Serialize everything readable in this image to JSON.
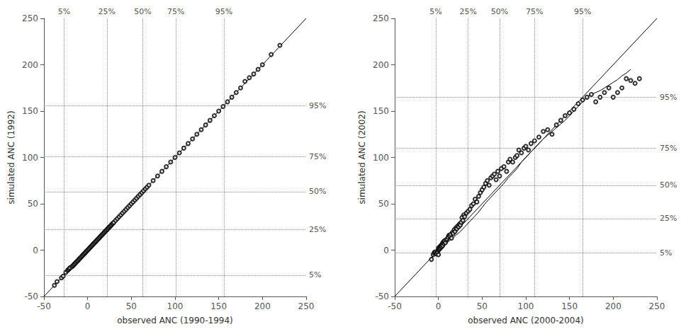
{
  "chart_data": [
    {
      "type": "scatter",
      "xlabel": "observed ANC (1990-1994)",
      "ylabel": "simulated ANC (1992)",
      "xlim": [
        -50,
        250
      ],
      "ylim": [
        -50,
        250
      ],
      "xticks": [
        -50,
        0,
        50,
        100,
        150,
        200,
        250
      ],
      "yticks": [
        -50,
        0,
        50,
        100,
        150,
        200,
        250
      ],
      "grid": false,
      "percentiles": {
        "x": [
          -27,
          22,
          63,
          101,
          156
        ],
        "y": [
          -27,
          22,
          63,
          101,
          156
        ],
        "labels": [
          "5%",
          "25%",
          "50%",
          "75%",
          "95%"
        ],
        "color": "#888888"
      },
      "series": [
        {
          "type": "line",
          "color": "#000000",
          "line_style": "solid",
          "x": [
            -50,
            250
          ],
          "values": [
            -50,
            250
          ]
        },
        {
          "type": "scatter",
          "color": "#000000",
          "marker": "circle-open",
          "x": [
            -38,
            -35,
            -30,
            -28,
            -25,
            -23,
            -22,
            -21,
            -20,
            -18,
            -17,
            -16,
            -15,
            -14,
            -13,
            -12,
            -11,
            -10,
            -9,
            -8,
            -7,
            -6,
            -5,
            -4,
            -3,
            -2,
            -1,
            0,
            1,
            2,
            3,
            4,
            5,
            6,
            7,
            8,
            9,
            10,
            11,
            12,
            13,
            14,
            15,
            16,
            17,
            18,
            19,
            20,
            21,
            22,
            23,
            24,
            25,
            26,
            27,
            28,
            29,
            30,
            32,
            34,
            36,
            38,
            40,
            42,
            44,
            46,
            48,
            50,
            52,
            54,
            56,
            58,
            60,
            62,
            64,
            66,
            68,
            70,
            75,
            80,
            85,
            90,
            95,
            100,
            105,
            110,
            115,
            120,
            125,
            130,
            135,
            140,
            145,
            150,
            155,
            160,
            165,
            170,
            175,
            180,
            185,
            190,
            195,
            200,
            210,
            220
          ],
          "values": [
            -38,
            -34,
            -30,
            -28,
            -24,
            -22,
            -21,
            -20,
            -19,
            -18,
            -17,
            -16,
            -15,
            -14,
            -13,
            -12,
            -11,
            -10,
            -9,
            -8,
            -7,
            -6,
            -5,
            -4,
            -3,
            -2,
            -1,
            0,
            1,
            2,
            3,
            4,
            5,
            6,
            7,
            8,
            9,
            10,
            11,
            12,
            13,
            14,
            15,
            16,
            17,
            18,
            19,
            20,
            21,
            22,
            23,
            24,
            25,
            26,
            27,
            28,
            29,
            30,
            32,
            34,
            36,
            38,
            40,
            42,
            44,
            46,
            48,
            50,
            52,
            54,
            56,
            58,
            60,
            62,
            64,
            66,
            68,
            70,
            75,
            80,
            85,
            90,
            95,
            100,
            105,
            110,
            115,
            120,
            125,
            130,
            135,
            140,
            145,
            150,
            155,
            160,
            165,
            170,
            175,
            182,
            186,
            190,
            195,
            200,
            211,
            221
          ]
        }
      ]
    },
    {
      "type": "scatter",
      "xlabel": "observed ANC (2000-2004)",
      "ylabel": "simulated ANC (2002)",
      "xlim": [
        -50,
        250
      ],
      "ylim": [
        -50,
        250
      ],
      "xticks": [
        -50,
        0,
        50,
        100,
        150,
        200,
        250
      ],
      "yticks": [
        -50,
        0,
        50,
        100,
        150,
        200,
        250
      ],
      "grid": false,
      "percentiles": {
        "x": [
          -3,
          34,
          70,
          110,
          165
        ],
        "y": [
          -3,
          34,
          70,
          110,
          165
        ],
        "labels": [
          "5%",
          "25%",
          "50%",
          "75%",
          "95%"
        ],
        "color": "#888888"
      },
      "series": [
        {
          "type": "line",
          "color": "#000000",
          "line_style": "solid",
          "x": [
            -50,
            250
          ],
          "values": [
            -50,
            250
          ]
        },
        {
          "type": "scatter",
          "color": "#000000",
          "marker": "circle-open",
          "x": [
            -8,
            -6,
            -5,
            -4,
            -3,
            -2,
            -1,
            0,
            0,
            0,
            1,
            1,
            2,
            2,
            3,
            3,
            4,
            4,
            5,
            5,
            6,
            6,
            7,
            8,
            9,
            10,
            11,
            12,
            13,
            14,
            15,
            16,
            17,
            18,
            19,
            20,
            21,
            22,
            23,
            24,
            25,
            26,
            27,
            28,
            29,
            30,
            32,
            34,
            36,
            38,
            40,
            42,
            44,
            46,
            48,
            50,
            52,
            54,
            56,
            58,
            60,
            62,
            64,
            66,
            68,
            70,
            72,
            75,
            78,
            80,
            82,
            85,
            88,
            90,
            92,
            95,
            98,
            100,
            103,
            106,
            110,
            115,
            120,
            125,
            130,
            135,
            140,
            145,
            150,
            155,
            160,
            165,
            170,
            175,
            180,
            185,
            190,
            195,
            200,
            205,
            210,
            215,
            220,
            225,
            230
          ],
          "values": [
            -10,
            -5,
            -3,
            -2,
            -3,
            -4,
            -2,
            0,
            2,
            -5,
            1,
            3,
            4,
            2,
            5,
            3,
            6,
            4,
            8,
            5,
            7,
            9,
            10,
            8,
            11,
            12,
            14,
            16,
            15,
            17,
            13,
            19,
            18,
            22,
            20,
            24,
            23,
            26,
            25,
            28,
            27,
            30,
            35,
            32,
            38,
            36,
            40,
            42,
            44,
            48,
            50,
            55,
            52,
            58,
            62,
            65,
            68,
            72,
            75,
            70,
            78,
            80,
            82,
            76,
            85,
            80,
            88,
            90,
            85,
            95,
            98,
            95,
            100,
            102,
            108,
            105,
            110,
            112,
            108,
            115,
            118,
            122,
            128,
            130,
            125,
            135,
            140,
            145,
            148,
            152,
            158,
            162,
            165,
            168,
            160,
            165,
            170,
            175,
            165,
            170,
            175,
            185,
            183,
            180,
            185
          ]
        },
        {
          "type": "line",
          "color": "#000000",
          "line_style": "solid",
          "x": [
            -8,
            -5,
            0,
            5,
            10,
            15,
            20,
            25,
            30,
            35,
            40,
            45,
            50,
            55,
            60,
            65,
            70,
            75,
            80,
            85,
            90,
            95,
            100,
            105,
            110,
            115,
            120,
            125,
            130,
            135,
            140,
            145,
            150,
            155,
            160,
            165,
            170,
            175,
            180,
            185,
            190,
            195,
            200,
            205,
            210,
            215,
            220
          ],
          "values": [
            -10,
            -4,
            0,
            4,
            8,
            12,
            16,
            20,
            25,
            30,
            35,
            40,
            46,
            52,
            57,
            62,
            67,
            72,
            78,
            83,
            88,
            95,
            100,
            105,
            110,
            115,
            120,
            124,
            128,
            132,
            136,
            140,
            145,
            150,
            155,
            160,
            165,
            168,
            170,
            172,
            175,
            178,
            181,
            184,
            188,
            191,
            195
          ]
        }
      ]
    }
  ]
}
